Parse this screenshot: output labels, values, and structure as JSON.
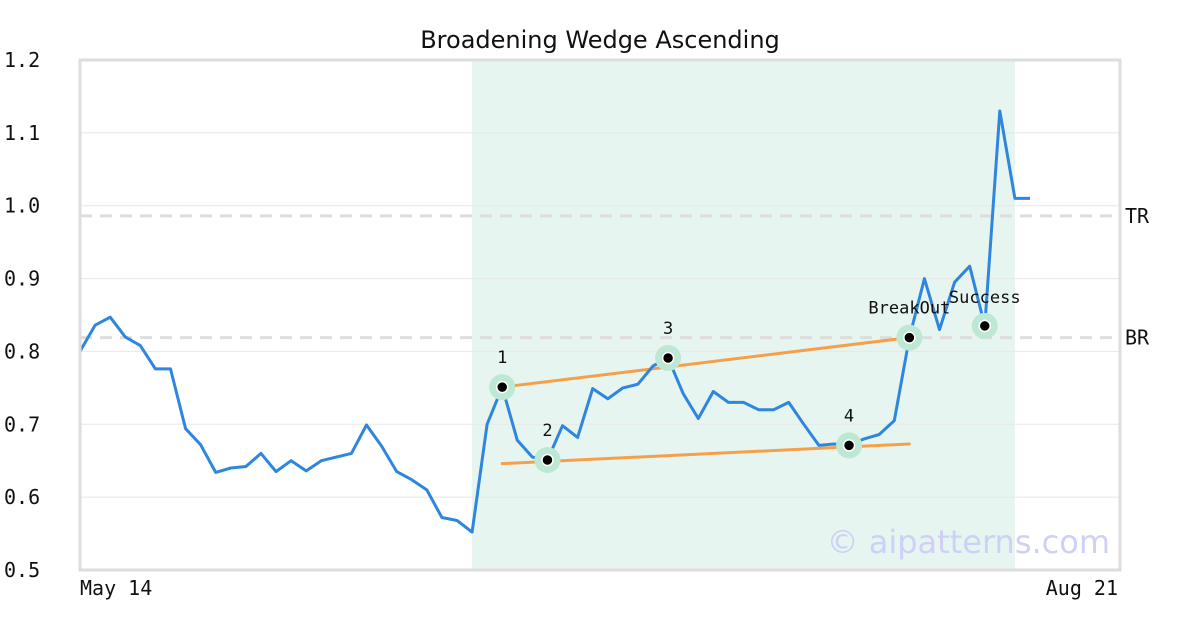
{
  "chart_data": {
    "type": "line",
    "title": "Broadening Wedge Ascending",
    "xlabel": "",
    "ylabel": "",
    "x_tick_labels": [
      "May 14",
      "Aug 21"
    ],
    "y_ticks": [
      "0.5",
      "0.6",
      "0.7",
      "0.8",
      "0.9",
      "1.0",
      "1.1",
      "1.2"
    ],
    "ylim": [
      0.5,
      1.2
    ],
    "grid": "horizontal",
    "series": [
      {
        "color": "#2e86de",
        "values": [
          0.8,
          0.836,
          0.847,
          0.82,
          0.808,
          0.776,
          0.776,
          0.694,
          0.672,
          0.634,
          0.64,
          0.642,
          0.66,
          0.635,
          0.65,
          0.636,
          0.65,
          0.655,
          0.66,
          0.699,
          0.67,
          0.635,
          0.624,
          0.61,
          0.572,
          0.568,
          0.552,
          0.7,
          0.751,
          0.678,
          0.655,
          0.651,
          0.698,
          0.682,
          0.749,
          0.735,
          0.75,
          0.755,
          0.78,
          0.791,
          0.742,
          0.708,
          0.745,
          0.73,
          0.73,
          0.72,
          0.72,
          0.73,
          0.7,
          0.671,
          0.673,
          0.671,
          0.68,
          0.686,
          0.705,
          0.819,
          0.9,
          0.83,
          0.895,
          0.917,
          0.835,
          1.13,
          1.01,
          1.01
        ]
      }
    ],
    "pattern_window": {
      "start_index": 26,
      "end_index": 62,
      "color": "#e6f5ef"
    },
    "trend_lines": [
      {
        "from": {
          "x": 28,
          "y": 0.751
        },
        "to": {
          "x": 55,
          "y": 0.819
        },
        "color": "#f4a04a"
      },
      {
        "from": {
          "x": 28,
          "y": 0.646
        },
        "to": {
          "x": 55,
          "y": 0.673
        },
        "color": "#f4a04a"
      }
    ],
    "levels": [
      {
        "label": "TR",
        "y": 0.986,
        "color": "#dddddd"
      },
      {
        "label": "BR",
        "y": 0.819,
        "color": "#dddddd"
      }
    ],
    "markers": [
      {
        "label": "1",
        "x": 28,
        "y": 0.751
      },
      {
        "label": "2",
        "x": 31,
        "y": 0.651
      },
      {
        "label": "3",
        "x": 39,
        "y": 0.791
      },
      {
        "label": "4",
        "x": 51,
        "y": 0.671
      },
      {
        "label": "BreakOut",
        "x": 55,
        "y": 0.819
      },
      {
        "label": "Success",
        "x": 60,
        "y": 0.835
      }
    ],
    "watermark": "© aipatterns.com",
    "colors": {
      "marker_halo": "#bde8d3",
      "marker_dot": "#000000",
      "watermark": "#cfd0f7",
      "axes": "#dddddd"
    }
  }
}
